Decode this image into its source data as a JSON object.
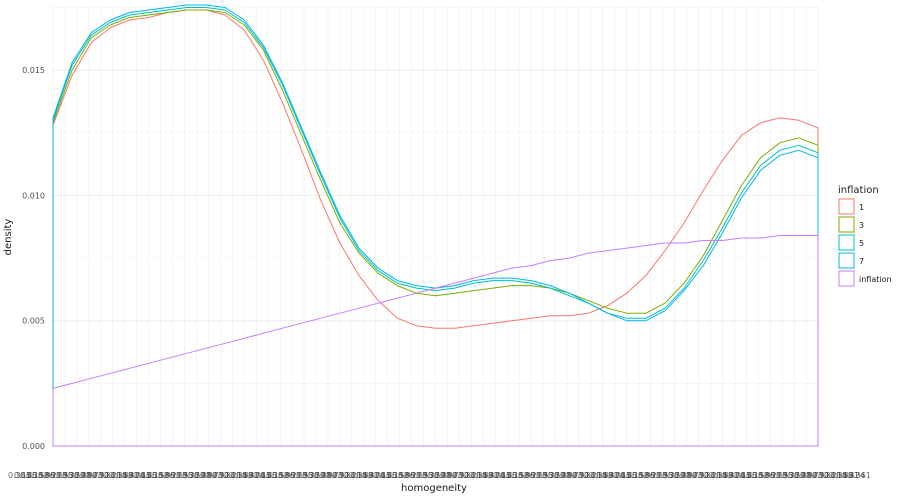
{
  "chart_data": {
    "type": "area",
    "xlabel": "homogeneity",
    "ylabel": "density",
    "ylim": [
      0,
      0.0176
    ],
    "xlim": [
      0,
      1
    ],
    "yticks": [
      0.0,
      0.005,
      0.01,
      0.015
    ],
    "ytick_labels": [
      "0.000",
      "0.005",
      "0.010",
      "0.015"
    ],
    "grid": true,
    "background": "#ffffff",
    "gridcolor": "#ebebeb",
    "legend": {
      "title": "inflation",
      "placement": "right",
      "entries": [
        "1",
        "3",
        "5",
        "7",
        "inflation"
      ]
    },
    "x_tick_note": "many overlapping numeric tick labels along x axis (not legible)",
    "x": [
      0.0,
      0.025,
      0.05,
      0.075,
      0.1,
      0.125,
      0.15,
      0.175,
      0.2,
      0.225,
      0.25,
      0.275,
      0.3,
      0.325,
      0.35,
      0.375,
      0.4,
      0.425,
      0.45,
      0.475,
      0.5,
      0.525,
      0.55,
      0.575,
      0.6,
      0.625,
      0.65,
      0.675,
      0.7,
      0.725,
      0.75,
      0.775,
      0.8,
      0.825,
      0.85,
      0.875,
      0.9,
      0.925,
      0.95,
      0.975,
      1.0
    ],
    "series": [
      {
        "name": "1",
        "color": "#F8766D",
        "values": [
          0.0128,
          0.0148,
          0.0161,
          0.0167,
          0.017,
          0.0171,
          0.0173,
          0.0174,
          0.0174,
          0.0172,
          0.0166,
          0.0154,
          0.0137,
          0.0118,
          0.0098,
          0.0081,
          0.0068,
          0.0058,
          0.0051,
          0.0048,
          0.0047,
          0.0047,
          0.0048,
          0.0049,
          0.005,
          0.0051,
          0.0052,
          0.0052,
          0.0053,
          0.0056,
          0.0061,
          0.0068,
          0.0078,
          0.0089,
          0.0102,
          0.0114,
          0.0124,
          0.0129,
          0.0131,
          0.013,
          0.0127
        ]
      },
      {
        "name": "3",
        "color": "#7CAE00",
        "values": [
          0.0129,
          0.015,
          0.0163,
          0.0168,
          0.0171,
          0.0172,
          0.0173,
          0.0174,
          0.0174,
          0.0173,
          0.0168,
          0.0158,
          0.0142,
          0.0124,
          0.0106,
          0.0089,
          0.0077,
          0.0069,
          0.0064,
          0.0061,
          0.006,
          0.0061,
          0.0062,
          0.0063,
          0.0064,
          0.0064,
          0.0063,
          0.0061,
          0.0058,
          0.0055,
          0.0053,
          0.0053,
          0.0057,
          0.0065,
          0.0076,
          0.009,
          0.0104,
          0.0115,
          0.0121,
          0.0123,
          0.012
        ]
      },
      {
        "name": "5",
        "color": "#00BFC4",
        "values": [
          0.013,
          0.0152,
          0.0164,
          0.0169,
          0.0172,
          0.0173,
          0.0174,
          0.0175,
          0.0175,
          0.0174,
          0.0169,
          0.0159,
          0.0144,
          0.0126,
          0.0108,
          0.0091,
          0.0078,
          0.007,
          0.0065,
          0.0063,
          0.0062,
          0.0063,
          0.0065,
          0.0066,
          0.0066,
          0.0065,
          0.0063,
          0.006,
          0.0057,
          0.0053,
          0.0051,
          0.0051,
          0.0055,
          0.0063,
          0.0074,
          0.0087,
          0.0101,
          0.0112,
          0.0118,
          0.012,
          0.0117
        ]
      },
      {
        "name": "7",
        "color": "#00B4F0",
        "values": [
          0.0131,
          0.0153,
          0.0165,
          0.017,
          0.0173,
          0.0174,
          0.0175,
          0.0176,
          0.0176,
          0.0175,
          0.017,
          0.016,
          0.0145,
          0.0127,
          0.0109,
          0.0092,
          0.0079,
          0.0071,
          0.0066,
          0.0064,
          0.0063,
          0.0064,
          0.0066,
          0.0067,
          0.0067,
          0.0066,
          0.0064,
          0.0061,
          0.0057,
          0.0053,
          0.005,
          0.005,
          0.0054,
          0.0062,
          0.0072,
          0.0085,
          0.0099,
          0.011,
          0.0116,
          0.0118,
          0.0115
        ]
      },
      {
        "name": "inflation",
        "color": "#C77CFF",
        "values": [
          0.0023,
          0.0025,
          0.0027,
          0.0029,
          0.0031,
          0.0033,
          0.0035,
          0.0037,
          0.0039,
          0.0041,
          0.0043,
          0.0045,
          0.0047,
          0.0049,
          0.0051,
          0.0053,
          0.0055,
          0.0057,
          0.0059,
          0.0061,
          0.0063,
          0.0065,
          0.0067,
          0.0069,
          0.0071,
          0.0072,
          0.0074,
          0.0075,
          0.0077,
          0.0078,
          0.0079,
          0.008,
          0.0081,
          0.0081,
          0.0082,
          0.0082,
          0.0083,
          0.0083,
          0.0084,
          0.0084,
          0.0084
        ]
      }
    ]
  }
}
